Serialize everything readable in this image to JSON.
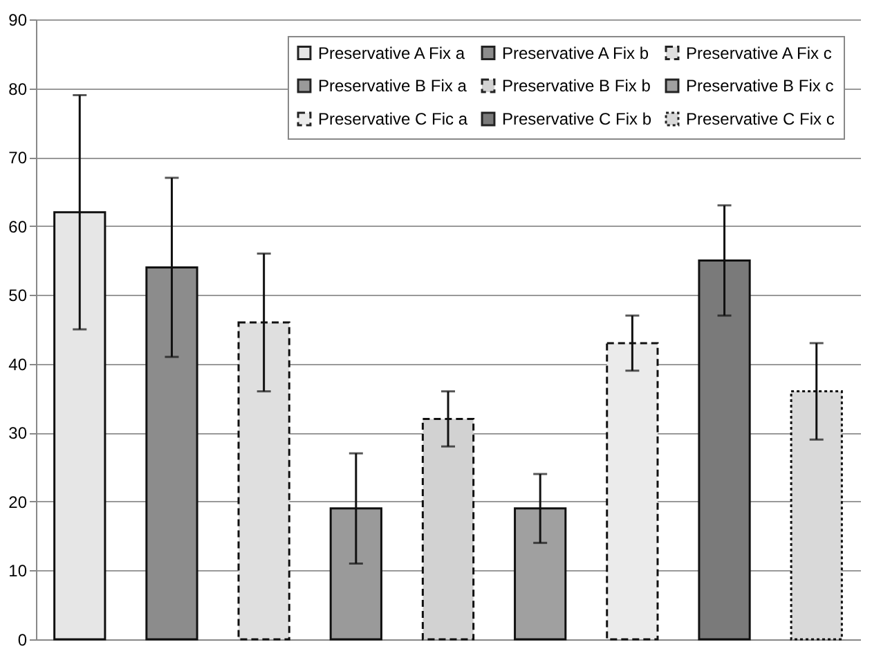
{
  "chart_data": {
    "type": "bar",
    "categories": [
      null,
      null,
      null,
      null,
      null,
      null,
      null,
      null,
      null
    ],
    "series": [
      {
        "name": "Preservative A Fix a",
        "color": "#e6e6e6",
        "line_style": "solid",
        "values": [
          62,
          null,
          null,
          null,
          null,
          null,
          null,
          null,
          null
        ],
        "errors": [
          17,
          null,
          null,
          null,
          null,
          null,
          null,
          null,
          null
        ]
      },
      {
        "name": "Preservative A Fix b",
        "color": "#8c8c8c",
        "line_style": "solid",
        "values": [
          null,
          54,
          null,
          null,
          null,
          null,
          null,
          null,
          null
        ],
        "errors": [
          null,
          13,
          null,
          null,
          null,
          null,
          null,
          null,
          null
        ]
      },
      {
        "name": "Preservative A Fix c",
        "color": "#dfdfdf",
        "line_style": "dashed",
        "values": [
          null,
          null,
          46,
          null,
          null,
          null,
          null,
          null,
          null
        ],
        "errors": [
          null,
          null,
          10,
          null,
          null,
          null,
          null,
          null,
          null
        ]
      },
      {
        "name": "Preservative B Fix a",
        "color": "#9a9a9a",
        "line_style": "solid",
        "values": [
          null,
          null,
          null,
          19,
          null,
          null,
          null,
          null,
          null
        ],
        "errors": [
          null,
          null,
          null,
          8,
          null,
          null,
          null,
          null,
          null
        ]
      },
      {
        "name": "Preservative B Fix b",
        "color": "#d2d2d2",
        "line_style": "dashed",
        "values": [
          null,
          null,
          null,
          null,
          32,
          null,
          null,
          null,
          null
        ],
        "errors": [
          null,
          null,
          null,
          null,
          4,
          null,
          null,
          null,
          null
        ]
      },
      {
        "name": "Preservative B Fix c",
        "color": "#a0a0a0",
        "line_style": "solid",
        "values": [
          null,
          null,
          null,
          null,
          null,
          19,
          null,
          null,
          null
        ],
        "errors": [
          null,
          null,
          null,
          null,
          null,
          5,
          null,
          null,
          null
        ]
      },
      {
        "name": "Preservative C Fic a",
        "color": "#ebebeb",
        "line_style": "dashed",
        "values": [
          null,
          null,
          null,
          null,
          null,
          null,
          43,
          null,
          null
        ],
        "errors": [
          null,
          null,
          null,
          null,
          null,
          null,
          4,
          null,
          null
        ]
      },
      {
        "name": "Preservative C Fix b",
        "color": "#7a7a7a",
        "line_style": "solid",
        "values": [
          null,
          null,
          null,
          null,
          null,
          null,
          null,
          55,
          null
        ],
        "errors": [
          null,
          null,
          null,
          null,
          null,
          null,
          null,
          8,
          null
        ]
      },
      {
        "name": "Preservative C Fix c",
        "color": "#d9d9d9",
        "line_style": "dotted",
        "values": [
          null,
          null,
          null,
          null,
          null,
          null,
          null,
          null,
          36
        ],
        "errors": [
          null,
          null,
          null,
          null,
          null,
          null,
          null,
          null,
          7
        ]
      }
    ],
    "ylim": [
      0,
      90
    ],
    "yticks": [
      0,
      10,
      20,
      30,
      40,
      50,
      60,
      70,
      80,
      90
    ],
    "grid": "y",
    "legend": "top right"
  }
}
